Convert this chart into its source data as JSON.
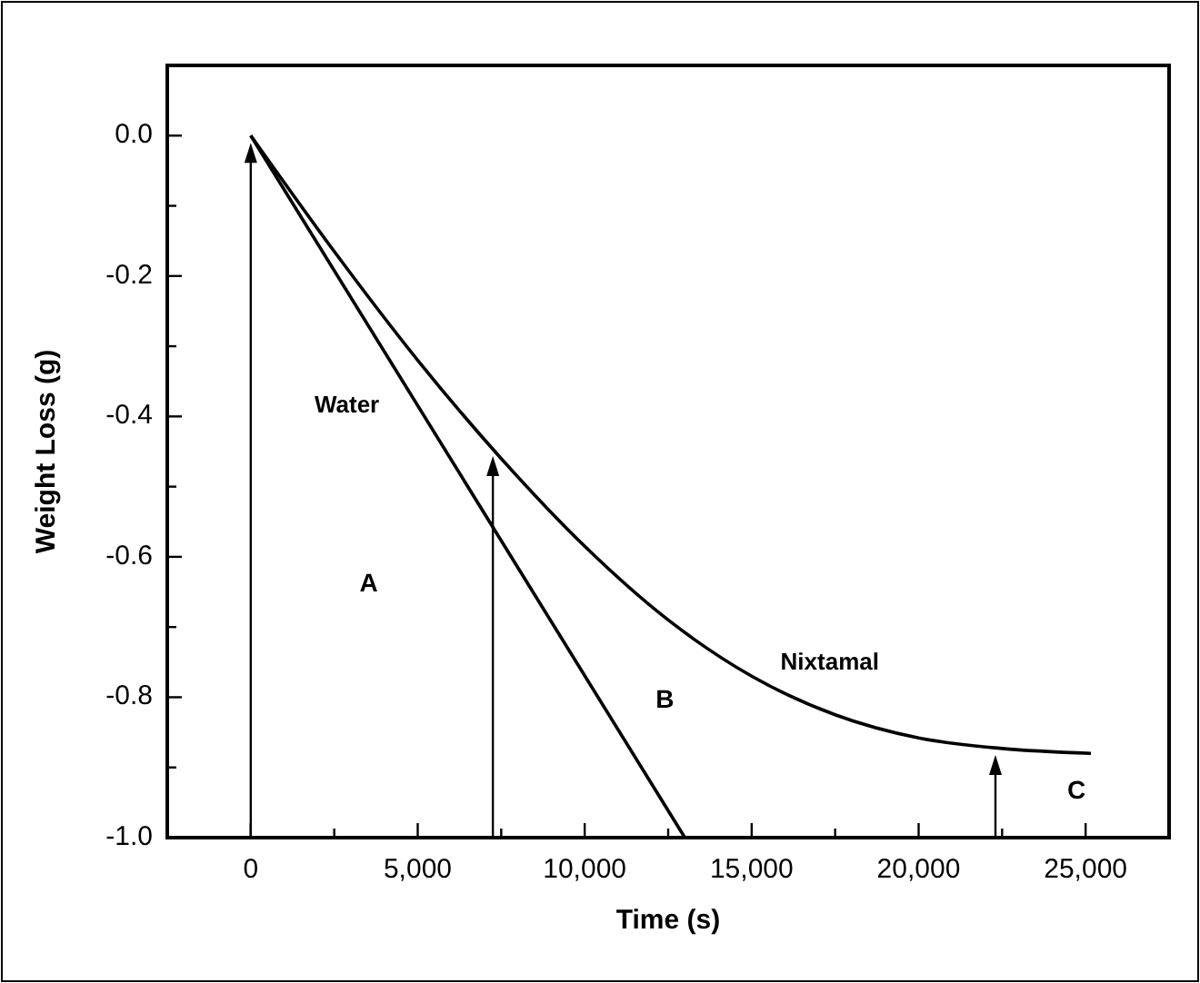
{
  "chart_data": {
    "type": "line",
    "xlabel": "Time (s)",
    "ylabel": "Weight Loss (g)",
    "xlim": [
      -2500,
      27500
    ],
    "ylim": [
      -1,
      0.1
    ],
    "xticks": [
      {
        "value": 0,
        "label": "0"
      },
      {
        "value": 2500,
        "label": null
      },
      {
        "value": 5000,
        "label": "5,000"
      },
      {
        "value": 7500,
        "label": null
      },
      {
        "value": 10000,
        "label": "10,000"
      },
      {
        "value": 12500,
        "label": null
      },
      {
        "value": 15000,
        "label": "15,000"
      },
      {
        "value": 17500,
        "label": null
      },
      {
        "value": 20000,
        "label": "20,000"
      },
      {
        "value": 22500,
        "label": null
      },
      {
        "value": 25000,
        "label": "25,000"
      }
    ],
    "yticks": [
      {
        "value": -1,
        "label": "-1.0"
      },
      {
        "value": -0.9,
        "label": null
      },
      {
        "value": -0.8,
        "label": "-0.8"
      },
      {
        "value": -0.7,
        "label": null
      },
      {
        "value": -0.6,
        "label": "-0.6"
      },
      {
        "value": -0.5,
        "label": null
      },
      {
        "value": -0.4,
        "label": "-0.4"
      },
      {
        "value": -0.3,
        "label": null
      },
      {
        "value": -0.2,
        "label": "-0.2"
      },
      {
        "value": -0.1,
        "label": null
      },
      {
        "value": 0,
        "label": "0.0"
      }
    ],
    "marker": "none",
    "line_style": "solid",
    "series": [
      {
        "name": "Water",
        "color": "#000000",
        "x": [
          0,
          13000
        ],
        "values": [
          0,
          -1
        ]
      },
      {
        "name": "Nixtamal",
        "color": "#000000",
        "x": [
          0,
          2500,
          5000,
          7500,
          10000,
          12500,
          15000,
          17500,
          20000,
          22500,
          25160
        ],
        "values": [
          0,
          -0.165,
          -0.32,
          -0.46,
          -0.585,
          -0.69,
          -0.77,
          -0.825,
          -0.858,
          -0.873,
          -0.88
        ]
      }
    ],
    "annotations": [
      "A",
      "B",
      "C"
    ]
  }
}
